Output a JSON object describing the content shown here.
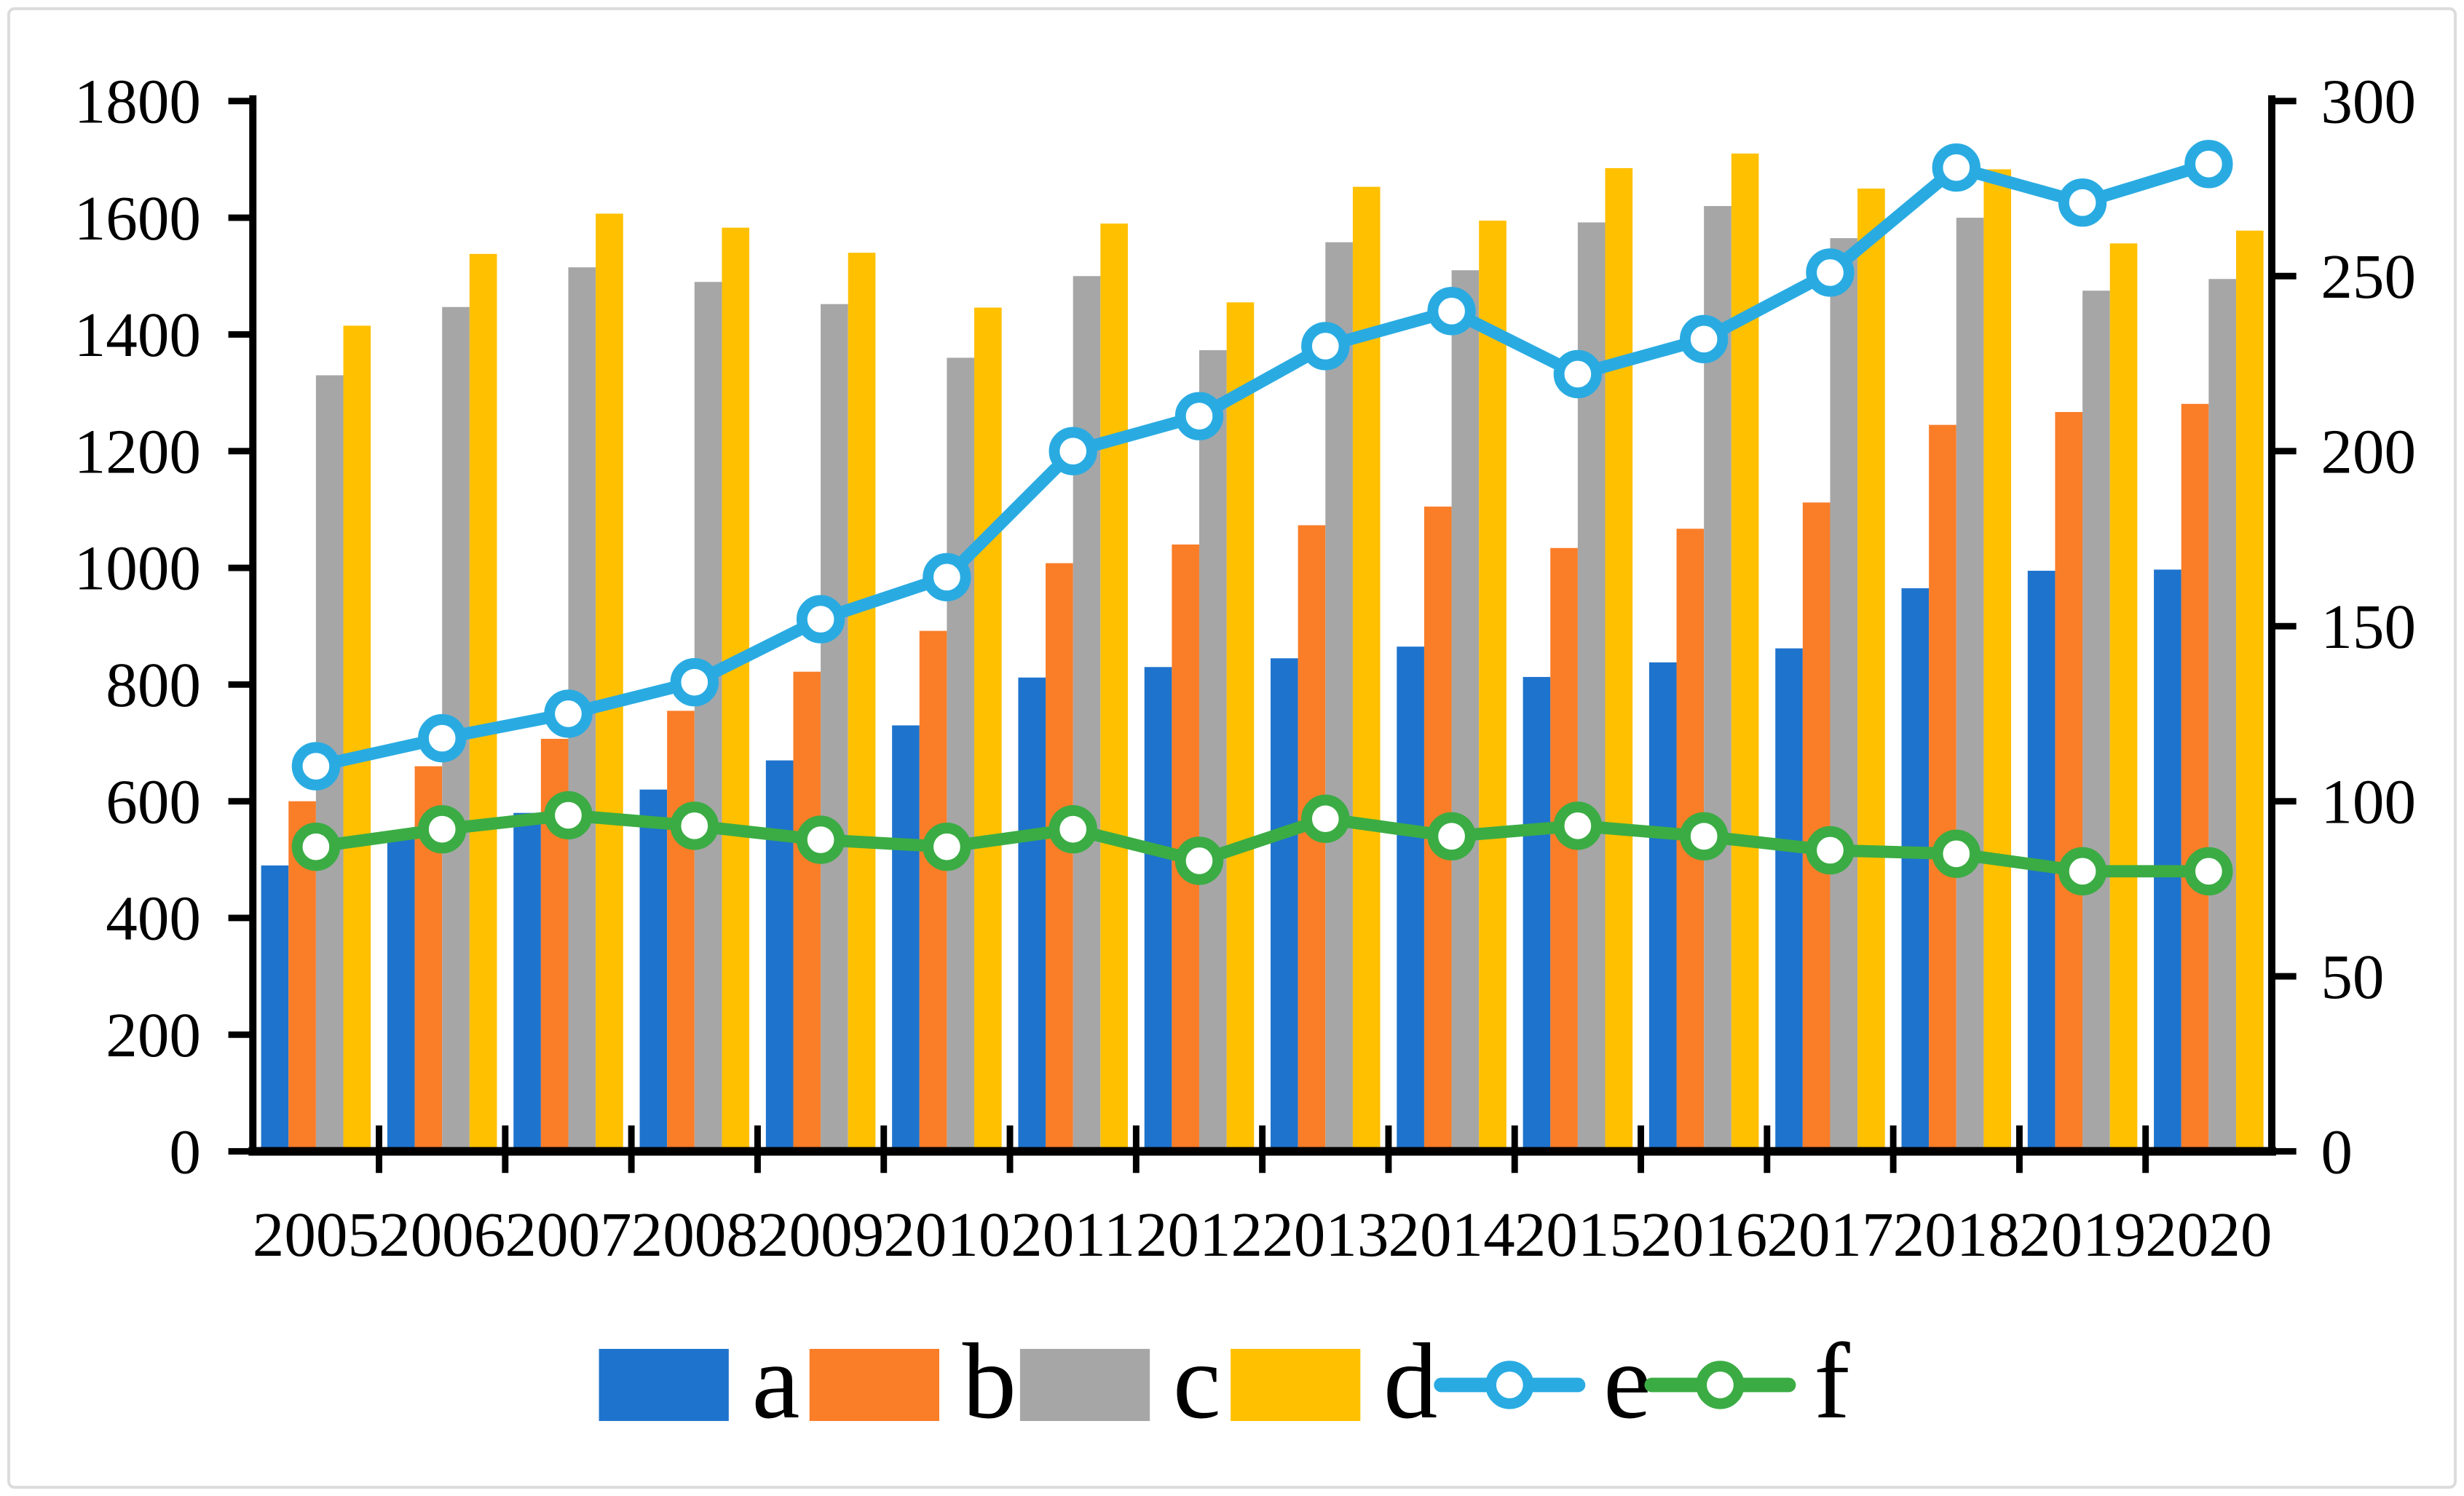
{
  "chart_data": {
    "type": "bar+line combo",
    "title": "",
    "xlabel": "",
    "ylabel_left": "",
    "ylabel_right": "",
    "categories": [
      "2005",
      "2006",
      "2007",
      "2008",
      "2009",
      "2010",
      "2011",
      "2012",
      "2013",
      "2014",
      "2015",
      "2016",
      "2017",
      "2018",
      "2019",
      "2020"
    ],
    "left_axis": {
      "min": 0,
      "max": 1800,
      "step": 200
    },
    "right_axis": {
      "min": 0,
      "max": 300,
      "step": 50
    },
    "grid": false,
    "legend_position": "bottom",
    "axis_color": "#000000",
    "series": [
      {
        "name": "a",
        "type": "bar",
        "axis": "left",
        "color": "#1e73cd",
        "values": [
          490,
          535,
          580,
          620,
          670,
          730,
          812,
          830,
          845,
          865,
          813,
          838,
          862,
          965,
          995,
          997
        ]
      },
      {
        "name": "b",
        "type": "bar",
        "axis": "left",
        "color": "#fa7d28",
        "values": [
          600,
          660,
          707,
          755,
          822,
          892,
          1008,
          1040,
          1073,
          1105,
          1034,
          1067,
          1112,
          1245,
          1267,
          1281
        ]
      },
      {
        "name": "c",
        "type": "bar",
        "axis": "left",
        "color": "#a6a6a6",
        "values": [
          1330,
          1447,
          1515,
          1490,
          1452,
          1360,
          1500,
          1373,
          1558,
          1510,
          1592,
          1620,
          1565,
          1600,
          1475,
          1495
        ]
      },
      {
        "name": "d",
        "type": "bar",
        "axis": "left",
        "color": "#ffc000",
        "values": [
          1415,
          1538,
          1607,
          1583,
          1540,
          1446,
          1590,
          1455,
          1653,
          1595,
          1685,
          1710,
          1650,
          1683,
          1556,
          1578
        ]
      },
      {
        "name": "e",
        "type": "line",
        "axis": "right",
        "color": "#29abe2",
        "values": [
          110,
          118,
          125,
          134,
          152,
          164,
          200,
          210,
          230,
          240,
          222,
          232,
          251,
          281,
          271,
          282
        ]
      },
      {
        "name": "f",
        "type": "line",
        "axis": "right",
        "color": "#3bac44",
        "values": [
          87,
          92,
          96,
          93,
          89,
          87,
          92,
          83,
          95,
          90,
          93,
          90,
          86,
          85,
          80,
          80
        ]
      }
    ]
  }
}
